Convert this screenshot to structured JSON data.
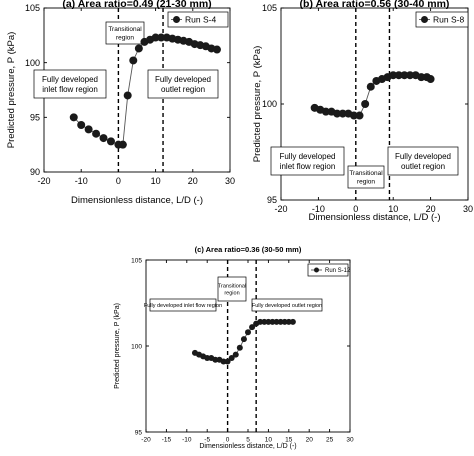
{
  "chart_data": [
    {
      "type": "scatter",
      "title": "(a) Area ratio=0.49 (21-30 mm)",
      "xlabel": "Dimensionless distance, L/D (-)",
      "ylabel": "Predicted pressure, P (kPa)",
      "xlim": [
        -20,
        30
      ],
      "ylim": [
        90,
        105
      ],
      "x_ticks": [
        "-20",
        "-10",
        "0",
        "10",
        "20",
        "30"
      ],
      "y_ticks": [
        "90",
        "95",
        "100",
        "105"
      ],
      "legend": "top-right",
      "grid": false,
      "series": [
        {
          "name": "Run S-4",
          "x": [
            -12,
            -10,
            -8,
            -6,
            -4,
            -2,
            0,
            1.2,
            2.5,
            4,
            5.5,
            7,
            8.5,
            10,
            11.5,
            13,
            14.5,
            16,
            17.5,
            19,
            20.5,
            22,
            23.5,
            25,
            26.5
          ],
          "y": [
            95.0,
            94.3,
            93.9,
            93.5,
            93.1,
            92.8,
            92.5,
            92.5,
            97.0,
            100.2,
            101.3,
            101.9,
            102.1,
            102.3,
            102.3,
            102.3,
            102.2,
            102.1,
            102.0,
            101.9,
            101.7,
            101.6,
            101.5,
            101.3,
            101.2
          ]
        }
      ],
      "vlines": [
        0,
        12
      ],
      "annotations": [
        "Transitional region",
        "Fully developed inlet flow region",
        "Fully developed outlet region"
      ]
    },
    {
      "type": "scatter",
      "title": "(b) Area ratio=0.56 (30-40 mm)",
      "xlabel": "Dimensionless distance, L/D (-)",
      "ylabel": "Predicted pressure, P (kPa)",
      "xlim": [
        -20,
        30
      ],
      "ylim": [
        95,
        105
      ],
      "x_ticks": [
        "-20",
        "-10",
        "0",
        "10",
        "20",
        "30"
      ],
      "y_ticks": [
        "95",
        "100",
        "105"
      ],
      "legend": "top-right",
      "grid": false,
      "series": [
        {
          "name": "Run S-8",
          "x": [
            -11,
            -9.5,
            -8,
            -6.5,
            -5,
            -3.5,
            -2,
            -0.5,
            1,
            2.5,
            4,
            5.5,
            7,
            8.5,
            10,
            11.5,
            13,
            14.5,
            16,
            17.5,
            19,
            20
          ],
          "y": [
            99.8,
            99.7,
            99.6,
            99.6,
            99.5,
            99.5,
            99.5,
            99.4,
            99.4,
            100.0,
            100.9,
            101.2,
            101.3,
            101.4,
            101.5,
            101.5,
            101.5,
            101.5,
            101.5,
            101.4,
            101.4,
            101.3
          ]
        }
      ],
      "vlines": [
        0,
        9
      ],
      "annotations": [
        "Transitional region",
        "Fully developed inlet flow region",
        "Fully developed outlet region"
      ]
    },
    {
      "type": "scatter",
      "title": "(c) Area ratio=0.36 (30-50 mm)",
      "xlabel": "Dimensionless distance, L/D (-)",
      "ylabel": "Predicted pressure, P (kPa)",
      "xlim": [
        -20,
        30
      ],
      "ylim": [
        95,
        105
      ],
      "x_ticks": [
        "-20",
        "-15",
        "-10",
        "-5",
        "0",
        "5",
        "10",
        "15",
        "20",
        "25",
        "30"
      ],
      "y_ticks": [
        "95",
        "100",
        "105"
      ],
      "legend": "top-right",
      "grid": false,
      "series": [
        {
          "name": "Run S-12",
          "x": [
            -8,
            -7,
            -6,
            -5,
            -4,
            -3,
            -2,
            -1,
            0,
            1,
            2,
            3,
            4,
            5,
            6,
            7,
            8,
            9,
            10,
            11,
            12,
            13,
            14,
            15,
            16
          ],
          "y": [
            99.6,
            99.5,
            99.4,
            99.3,
            99.3,
            99.2,
            99.2,
            99.1,
            99.1,
            99.3,
            99.5,
            99.9,
            100.4,
            100.8,
            101.1,
            101.3,
            101.4,
            101.4,
            101.4,
            101.4,
            101.4,
            101.4,
            101.4,
            101.4,
            101.4
          ]
        }
      ],
      "vlines": [
        0,
        7
      ],
      "annotations": [
        "Transitional region",
        "Fully developed inlet flow region",
        "Fully developed outlet region"
      ]
    }
  ]
}
